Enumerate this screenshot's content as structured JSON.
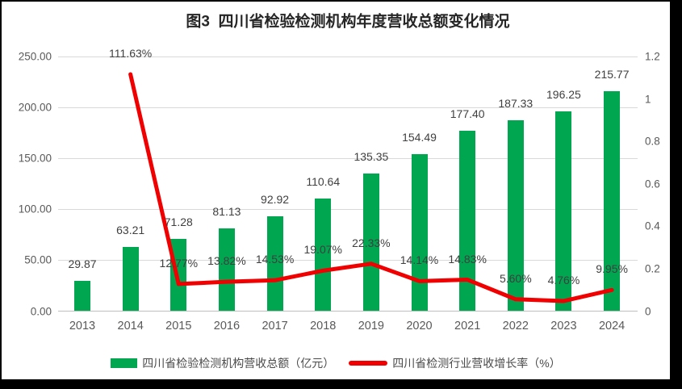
{
  "title": "图3  四川省检验检测机构年度营收总额变化情况",
  "colors": {
    "bar_green": "#00A650",
    "line_red": "#F00000",
    "gridline": "#D9D9D9",
    "axis_text": "#595959",
    "label_text": "#3F3F3F",
    "background": "#FFFFFF",
    "frame": "#000000"
  },
  "chart_data": {
    "type": "bar",
    "title": "图3  四川省检验检测机构年度营收总额变化情况",
    "categories": [
      "2013",
      "2014",
      "2015",
      "2016",
      "2017",
      "2018",
      "2019",
      "2020",
      "2021",
      "2022",
      "2023",
      "2024"
    ],
    "series": [
      {
        "name": "四川省检验检测机构营收总额（亿元）",
        "type": "bar",
        "axis": "left",
        "color": "#00A650",
        "values": [
          29.87,
          63.21,
          71.28,
          81.13,
          92.92,
          110.64,
          135.35,
          154.49,
          177.4,
          187.33,
          196.25,
          215.77
        ],
        "labels": [
          "29.87",
          "63.21",
          "71.28",
          "81.13",
          "92.92",
          "110.64",
          "135.35",
          "154.49",
          "177.40",
          "187.33",
          "196.25",
          "215.77"
        ]
      },
      {
        "name": "四川省检测行业营收增长率（%）",
        "type": "line",
        "axis": "right",
        "color": "#F00000",
        "values": [
          null,
          1.1163,
          0.1277,
          0.1382,
          0.1453,
          0.1907,
          0.2233,
          0.1414,
          0.1483,
          0.056,
          0.0476,
          0.0995
        ],
        "labels": [
          null,
          "111.63%",
          "12.77%",
          "13.82%",
          "14.53%",
          "19.07%",
          "22.33%",
          "14.14%",
          "14.83%",
          "5.60%",
          "4.76%",
          "9.95%"
        ]
      }
    ],
    "left_axis": {
      "min": 0,
      "max": 250,
      "ticks": [
        "0.00",
        "50.00",
        "100.00",
        "150.00",
        "200.00",
        "250.00"
      ]
    },
    "right_axis": {
      "min": 0,
      "max": 1.2,
      "ticks": [
        "0",
        "0.2",
        "0.4",
        "0.6",
        "0.8",
        "1",
        "1.2"
      ]
    },
    "grid": true,
    "legend_position": "bottom"
  }
}
